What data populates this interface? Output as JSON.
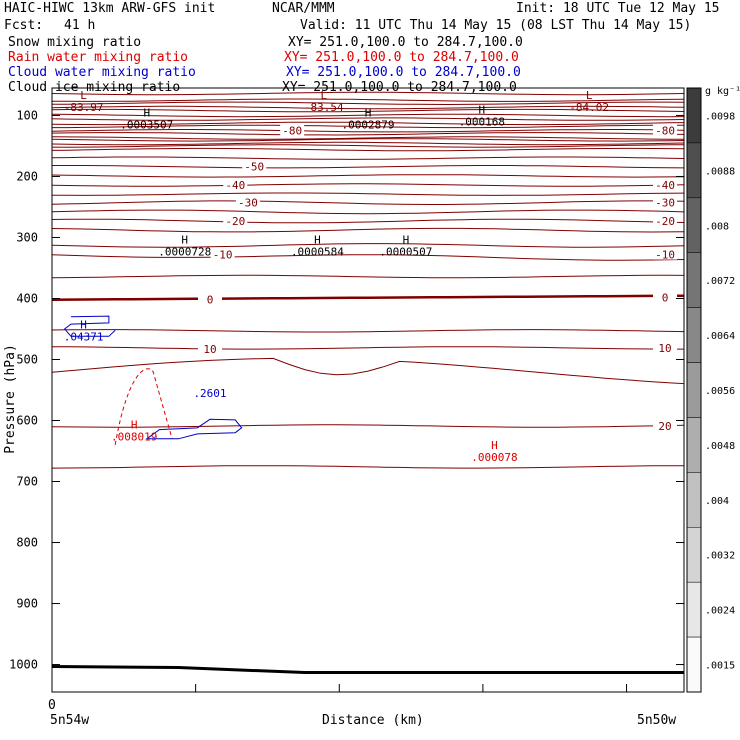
{
  "header": {
    "title": "HAIC-HIWC 13km ARW-GFS init",
    "org": "NCAR/MMM",
    "init": "Init: 18 UTC Tue 12 May 15",
    "fcst_label": "Fcst:",
    "fcst_value": "41 h",
    "valid": "Valid: 11 UTC Thu 14 May 15 (08 LST Thu 14 May 15)",
    "fields": [
      {
        "name": "Snow mixing ratio",
        "xy": "XY= 251.0,100.0 to 284.7,100.0",
        "color": "#000000"
      },
      {
        "name": "Rain water mixing ratio",
        "xy": "XY= 251.0,100.0 to 284.7,100.0",
        "color": "#dd0000"
      },
      {
        "name": "Cloud water mixing ratio",
        "xy": "XY= 251.0,100.0 to 284.7,100.0",
        "color": "#0000cc"
      },
      {
        "name": "Cloud ice mixing ratio",
        "xy": "XY= 251.0,100.0 to 284.7,100.0",
        "color": "#000000"
      }
    ]
  },
  "chart_data": {
    "type": "cross-section contour",
    "ylabel": "Pressure (hPa)",
    "xlabel": "Distance (km)",
    "x_start_label": "5n54w",
    "x_end_label": "5n50w",
    "x_zero_label": "0",
    "ylim": [
      1045,
      55
    ],
    "y_ticks": [
      100,
      200,
      300,
      400,
      500,
      600,
      700,
      800,
      900,
      1000
    ],
    "temperature_contours": {
      "color": "#800000",
      "zero_line_level": 0,
      "labels": [
        {
          "text": "-80",
          "x": 0.38,
          "p": 125
        },
        {
          "text": "-80",
          "x": 0.97,
          "p": 125
        },
        {
          "text": "-50",
          "x": 0.32,
          "p": 184
        },
        {
          "text": "-40",
          "x": 0.29,
          "p": 214
        },
        {
          "text": "-40",
          "x": 0.97,
          "p": 214
        },
        {
          "text": "-30",
          "x": 0.31,
          "p": 243
        },
        {
          "text": "-30",
          "x": 0.97,
          "p": 243
        },
        {
          "text": "-20",
          "x": 0.29,
          "p": 273
        },
        {
          "text": "-20",
          "x": 0.97,
          "p": 273
        },
        {
          "text": "-10",
          "x": 0.27,
          "p": 328
        },
        {
          "text": "-10",
          "x": 0.97,
          "p": 328
        },
        {
          "text": "0",
          "x": 0.25,
          "p": 402
        },
        {
          "text": "0",
          "x": 0.97,
          "p": 398
        },
        {
          "text": "10",
          "x": 0.25,
          "p": 483
        },
        {
          "text": "10",
          "x": 0.97,
          "p": 481
        },
        {
          "text": "20",
          "x": 0.97,
          "p": 609
        }
      ]
    },
    "extrema": [
      {
        "kind": "L",
        "value": "-83.97",
        "x": 0.05,
        "p": 73,
        "color": "#800000"
      },
      {
        "kind": "L",
        "value": "-83.54",
        "x": 0.43,
        "p": 73,
        "color": "#800000"
      },
      {
        "kind": "L",
        "value": "-84.02",
        "x": 0.85,
        "p": 73,
        "color": "#800000"
      },
      {
        "kind": "H",
        "value": ".0003507",
        "x": 0.15,
        "p": 102,
        "color": "#000000"
      },
      {
        "kind": "H",
        "value": ".0002879",
        "x": 0.5,
        "p": 102,
        "color": "#000000"
      },
      {
        "kind": "H",
        "value": ".000168",
        "x": 0.68,
        "p": 97,
        "color": "#000000"
      },
      {
        "kind": "H",
        "value": ".0000728",
        "x": 0.21,
        "p": 310,
        "color": "#000000"
      },
      {
        "kind": "H",
        "value": ".0000584",
        "x": 0.42,
        "p": 310,
        "color": "#000000"
      },
      {
        "kind": "H",
        "value": ".0000507",
        "x": 0.56,
        "p": 310,
        "color": "#000000"
      },
      {
        "kind": "H",
        "value": ".04371",
        "x": 0.05,
        "p": 449,
        "color": "#0000cc"
      },
      {
        "kind": "H",
        "value": ".000078",
        "x": 0.7,
        "p": 647,
        "color": "#dd0000"
      },
      {
        "kind": "H",
        "value": ".008019",
        "x": 0.13,
        "p": 613,
        "color": "#dd0000"
      }
    ],
    "cloud_water_label": {
      "text": ".2601",
      "x": 0.25,
      "p": 555
    },
    "colorbar": {
      "units": "g kg⁻¹",
      "ticks": [
        ".0098",
        ".0088",
        ".008",
        ".0072",
        ".0064",
        ".0056",
        ".0048",
        ".004",
        ".0032",
        ".0024",
        ".0015"
      ]
    }
  }
}
